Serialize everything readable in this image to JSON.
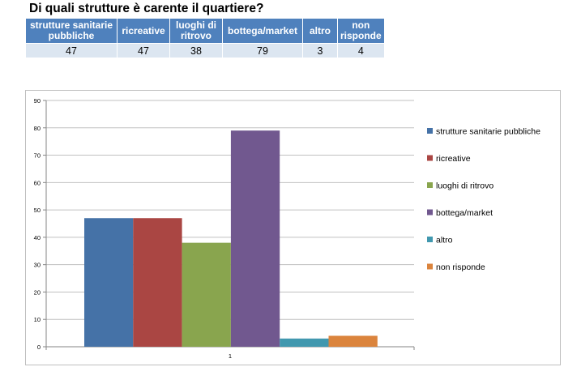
{
  "title": "Di quali strutture è carente il quartiere?",
  "table": {
    "headers": [
      "strutture sanitarie pubbliche",
      "ricreative",
      "luoghi di ritrovo",
      "bottega/market",
      "altro",
      "non risponde"
    ],
    "values": [
      "47",
      "47",
      "38",
      "79",
      "3",
      "4"
    ]
  },
  "chart_data": {
    "type": "bar",
    "categories": [
      "1"
    ],
    "series": [
      {
        "name": "strutture sanitarie pubbliche",
        "values": [
          47
        ],
        "color": "#4572a7"
      },
      {
        "name": "ricreative",
        "values": [
          47
        ],
        "color": "#aa4643"
      },
      {
        "name": "luoghi di ritrovo",
        "values": [
          38
        ],
        "color": "#89a54e"
      },
      {
        "name": "bottega/market",
        "values": [
          79
        ],
        "color": "#71588f"
      },
      {
        "name": "altro",
        "values": [
          3
        ],
        "color": "#4198af"
      },
      {
        "name": "non risponde",
        "values": [
          4
        ],
        "color": "#db843d"
      }
    ],
    "ylim": [
      0,
      90
    ],
    "yticks": [
      0,
      10,
      20,
      30,
      40,
      50,
      60,
      70,
      80,
      90
    ],
    "grid": true,
    "legend": "right"
  }
}
